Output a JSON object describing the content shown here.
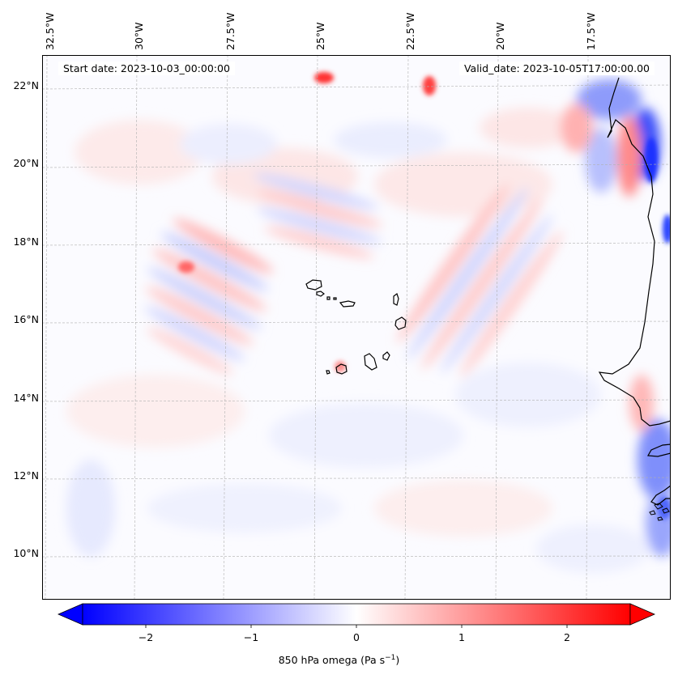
{
  "map": {
    "start_date_label": "Start date: 2023-10-03_00:00:00",
    "valid_date_label": "Valid_date: 2023-10-05T17:00:00.00",
    "lon_labels": [
      "32.5°W",
      "30°W",
      "27.5°W",
      "25°W",
      "22.5°W",
      "20°W",
      "17.5°W"
    ],
    "lat_labels": [
      "22°N",
      "20°N",
      "18°N",
      "16°N",
      "14°N",
      "12°N",
      "10°N"
    ],
    "field": "850 hPa omega"
  },
  "colorbar": {
    "label": "850 hPa omega (Pa s",
    "label_exp": "−1",
    "label_close": ")",
    "ticks": [
      "−2",
      "−1",
      "0",
      "1",
      "2"
    ],
    "tick_values": [
      -2,
      -1,
      0,
      1,
      2
    ],
    "vmin": -2.6,
    "vmax": 2.6,
    "colormap": "bwr",
    "extend": "both"
  },
  "colors": {
    "negative": "#0000ff",
    "zero": "#ffffff",
    "positive": "#ff0000",
    "coast": "#000000"
  }
}
